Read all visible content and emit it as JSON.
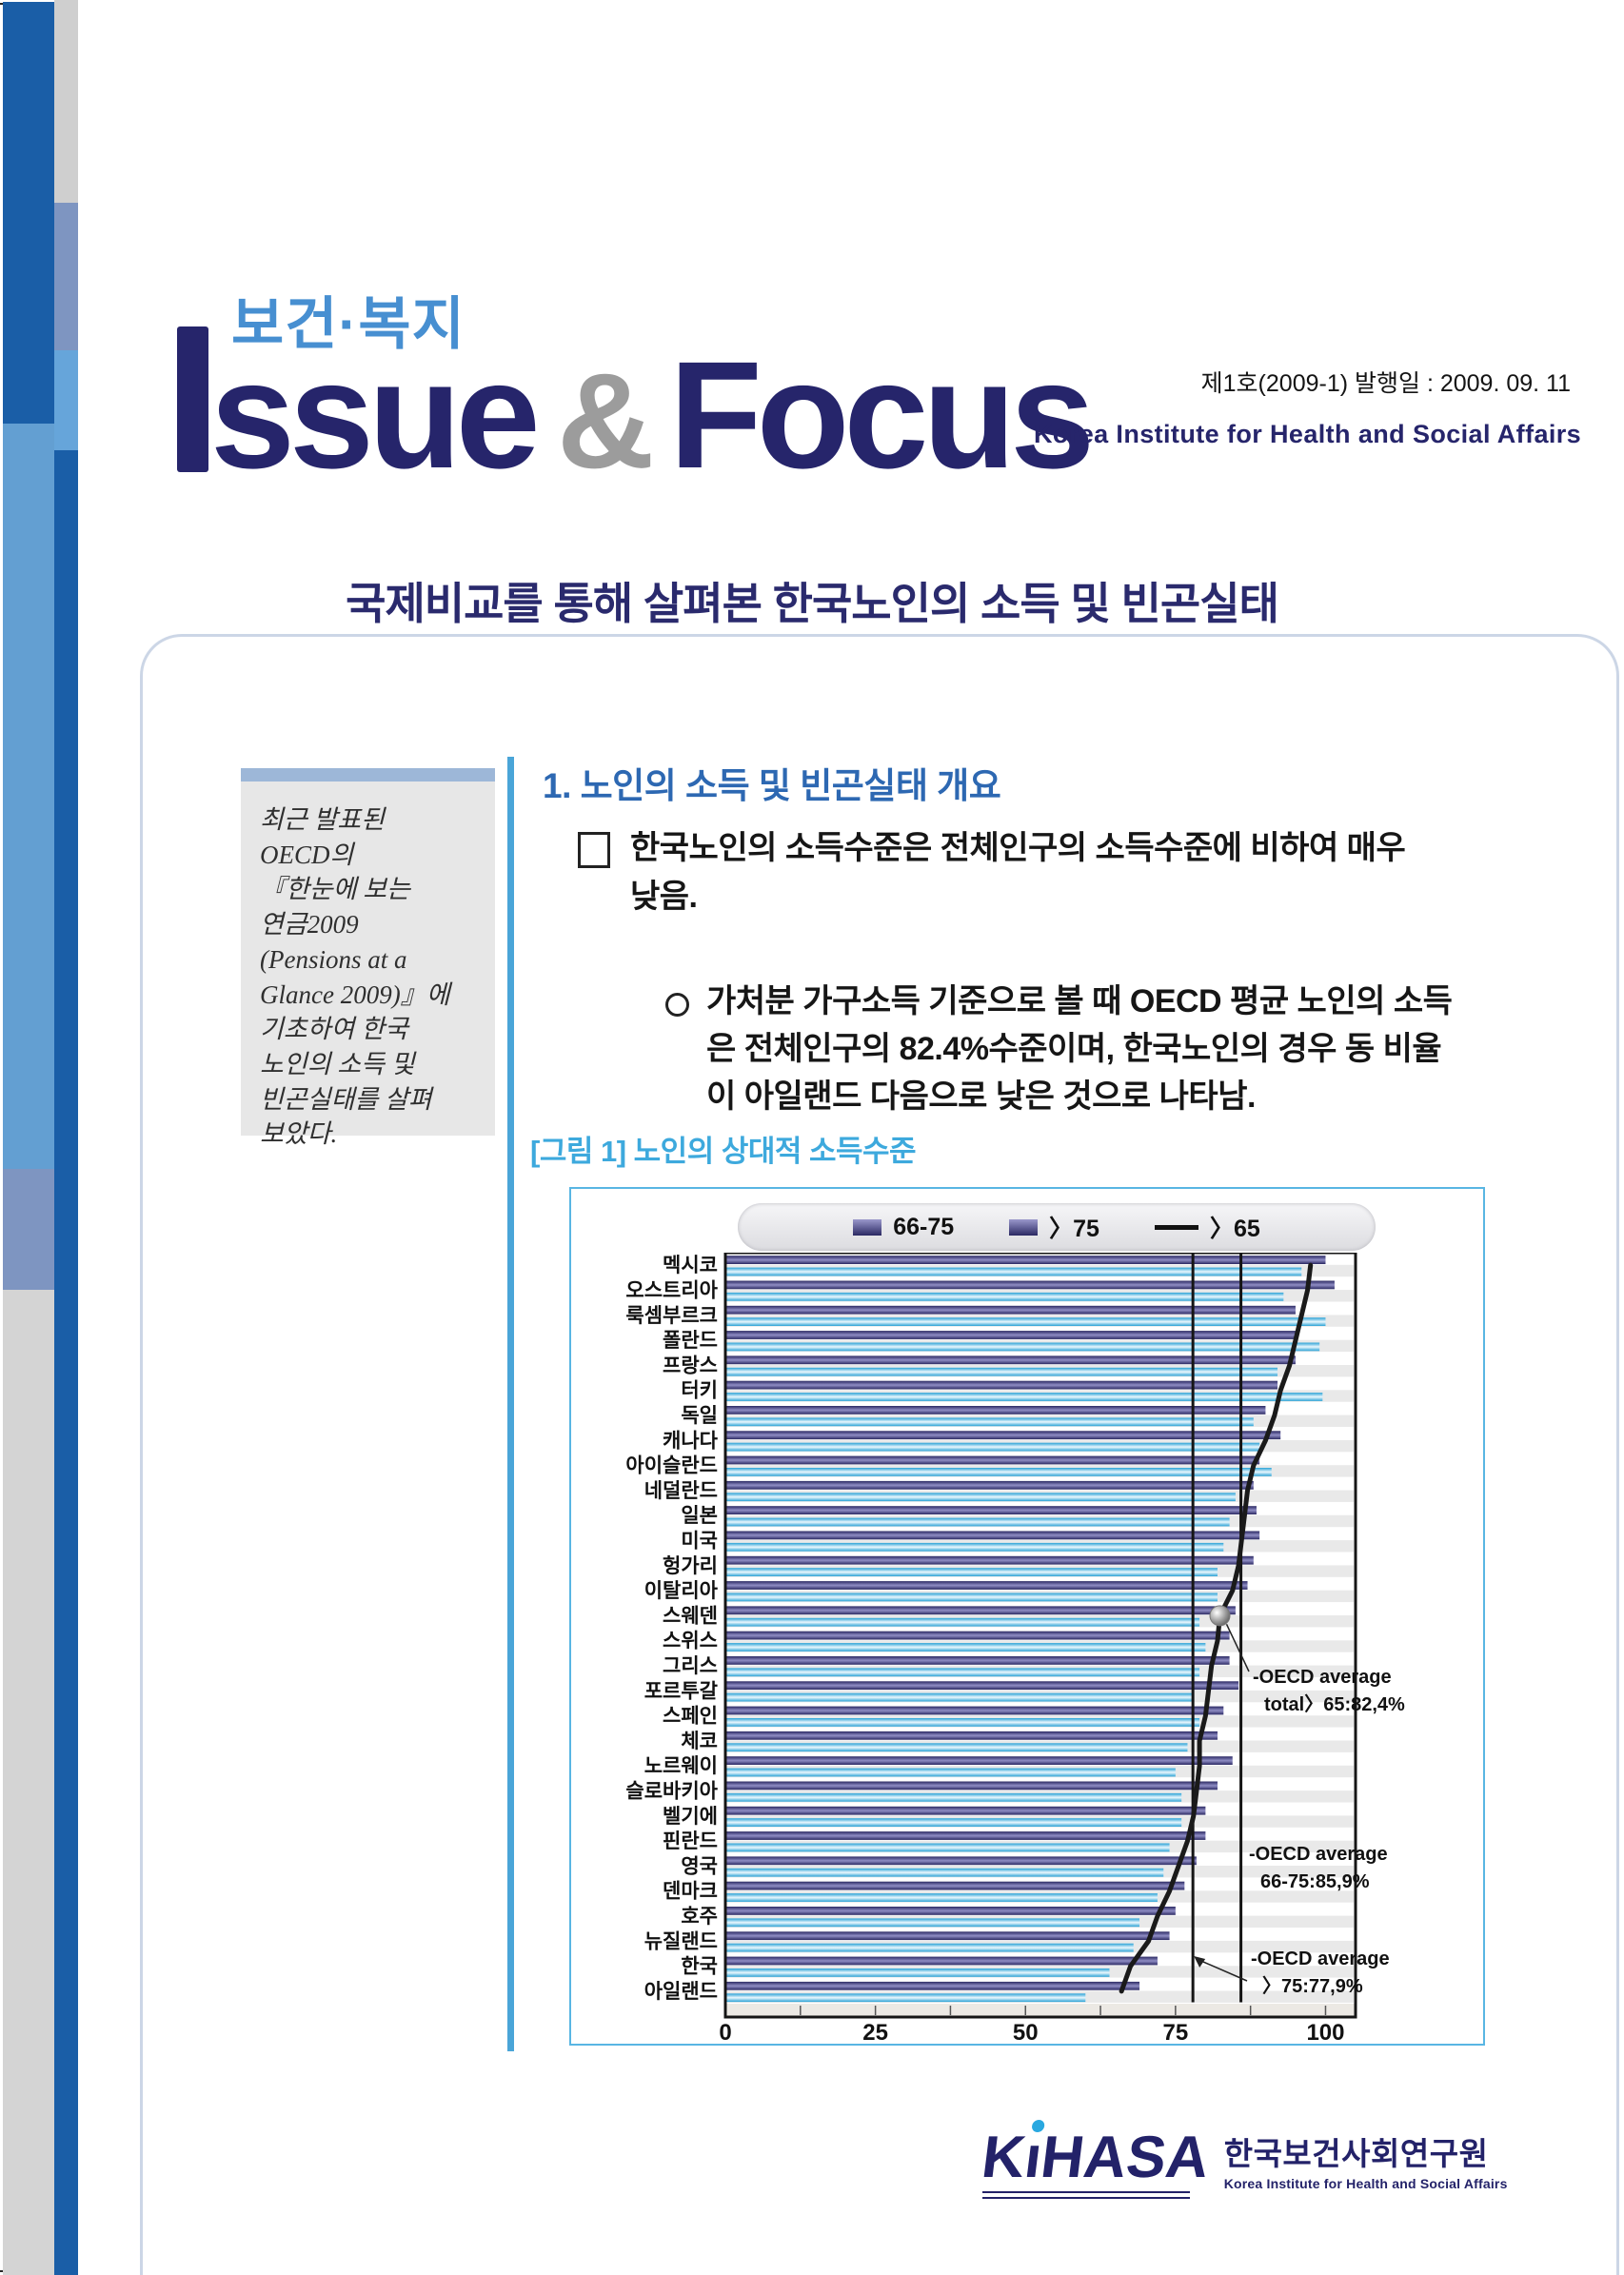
{
  "masthead": {
    "korean_logo": "보건·복지",
    "logo_ssue": "ssue",
    "logo_amp": "&",
    "logo_focus": "Focus",
    "issue_info": "제1호(2009-1) 발행일 : 2009. 09. 11",
    "institute_en": "Korea Institute for Health and Social Affairs"
  },
  "title": "국제비교를 통해 살펴본 한국노인의 소득 및 빈곤실태",
  "sidebar_note": {
    "text": "최근 발표된\nOECD의\n『한눈에 보는\n연금2009\n(Pensions at a\nGlance 2009)』에\n기초하여 한국\n노인의 소득 및\n빈곤실태를 살펴\n보았다."
  },
  "section1": {
    "heading": "1.  노인의 소득 및 빈곤실태 개요",
    "bullet1": {
      "marker": "□",
      "text": "한국노인의 소득수준은 전체인구의 소득수준에 비하여 매우\n낮음."
    },
    "bullet2": {
      "marker": "○",
      "text": "가처분 가구소득 기준으로 볼 때 OECD 평균 노인의 소득\n은 전체인구의 82.4%수준이며, 한국노인의 경우 동 비율\n이 아일랜드 다음으로 낮은 것으로 나타남."
    }
  },
  "figure": {
    "caption": "[그림 1] 노인의 상대적 소득수준",
    "legend": [
      {
        "label": "66-75",
        "swatch": "bar"
      },
      {
        "label": "〉75",
        "swatch": "bar"
      },
      {
        "label": "〉65",
        "swatch": "line"
      }
    ]
  },
  "chart_data": {
    "type": "bar",
    "orientation": "horizontal",
    "title": "노인의 상대적 소득수준",
    "categories": [
      "멕시코",
      "오스트리아",
      "룩셈부르크",
      "폴란드",
      "프랑스",
      "터키",
      "독일",
      "캐나다",
      "아이슬란드",
      "네덜란드",
      "일본",
      "미국",
      "헝가리",
      "이탈리아",
      "스웨덴",
      "스위스",
      "그리스",
      "포르투갈",
      "스페인",
      "체코",
      "노르웨이",
      "슬로바키아",
      "벨기에",
      "핀란드",
      "영국",
      "덴마크",
      "호주",
      "뉴질랜드",
      "한국",
      "아일랜드"
    ],
    "series": [
      {
        "name": "66-75",
        "type": "bar",
        "values": [
          100,
          101.5,
          95,
          95,
          95,
          92,
          90,
          92.5,
          89,
          88,
          88.5,
          89,
          88,
          87,
          85,
          84,
          84,
          85.5,
          83,
          82,
          84.5,
          82,
          80,
          80,
          78.5,
          76.5,
          75,
          74,
          72,
          69
        ]
      },
      {
        "name": "〉75",
        "type": "bar",
        "values": [
          96,
          93,
          100,
          99,
          92,
          99.5,
          88,
          89,
          91,
          85,
          84,
          83,
          82,
          82,
          79,
          80,
          79,
          78,
          79,
          77,
          75,
          76,
          76,
          74,
          73,
          72,
          69,
          68,
          64,
          60
        ]
      },
      {
        "name": "〉65",
        "type": "line",
        "values": [
          97.5,
          97,
          96,
          95,
          94,
          92.5,
          91.5,
          90,
          88,
          87,
          86.5,
          86,
          85.5,
          84.5,
          82.4,
          82,
          81,
          80.5,
          80,
          79,
          79,
          78.5,
          78,
          77,
          75.5,
          74,
          72,
          70.5,
          67.5,
          66
        ]
      }
    ],
    "values_note": "values estimated from figure pixels, axis 0-100",
    "xlim": [
      0,
      105
    ],
    "xticks": [
      0,
      25,
      50,
      75,
      100
    ],
    "minor_tick_step": 12.5,
    "grid": false,
    "legend_position": "top",
    "reference_lines": [
      {
        "value": 77.9,
        "label": "OECD average 〉75"
      },
      {
        "value": 85.9,
        "label": "OECD average 66-75"
      }
    ],
    "marker": {
      "category": "스웨덴",
      "series": "〉65",
      "value": 82.4
    },
    "annotations": [
      {
        "lines": [
          "-OECD average",
          "total〉65:82,4%"
        ]
      },
      {
        "lines": [
          "-OECD average",
          "66-75:85,9%"
        ]
      },
      {
        "lines": [
          "-OECD average",
          "〉75:77,9%"
        ]
      }
    ]
  },
  "footer": {
    "parts": {
      "k": "K",
      "i_dotless": "ı",
      "rest": "HASA"
    },
    "korean": "한국보건사회연구원",
    "english": "Korea Institute for Health and Social Affairs"
  },
  "colors": {
    "navy": "#26256b",
    "accent_blue": "#478fd1",
    "heading_blue": "#2d68b2",
    "caption_blue": "#3da9dd",
    "figure_border": "#59b6e3",
    "bar_66_75": "#2b2963",
    "bar_66_75_mid": "#8f8dc4",
    "bar_75": "#2aa2d6",
    "bar_75_mid": "#eaf7fd",
    "line_65": "#1a1a1a",
    "band_gray": "#e9e9e9",
    "deco_dark_blue": "#1a5ea7",
    "deco_light_blue": "#639fd2",
    "deco_slate": "#7e95c1",
    "deco_gray": "#d4d4d4"
  }
}
